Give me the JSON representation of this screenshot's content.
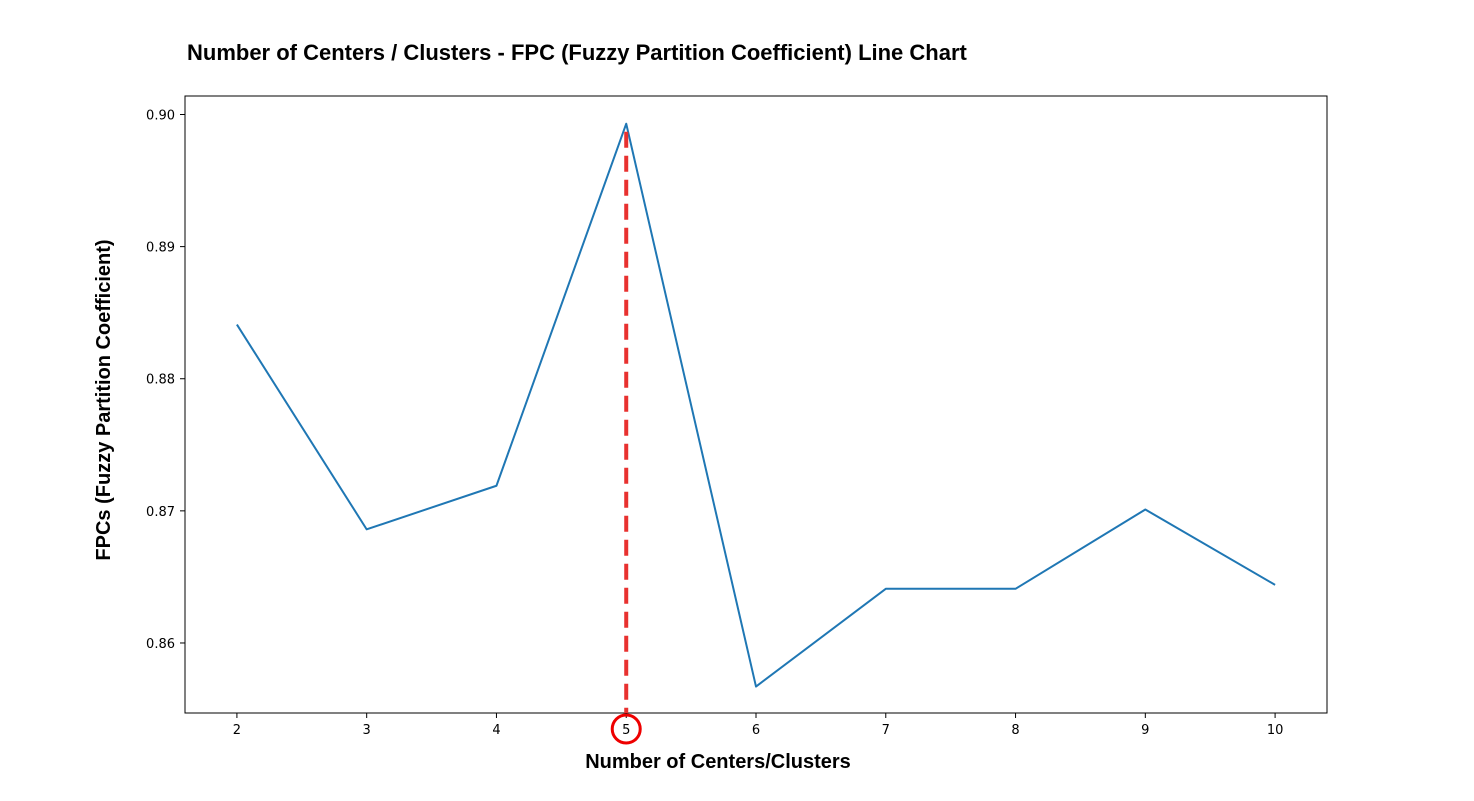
{
  "chart_data": {
    "type": "line",
    "title": "Number of Centers / Clusters - FPC (Fuzzy Partition Coefficient) Line Chart",
    "xlabel": "Number of Centers/Clusters",
    "ylabel": "FPCs (Fuzzy Partition Coefficient)",
    "x": [
      2,
      3,
      4,
      5,
      6,
      7,
      8,
      9,
      10
    ],
    "series": [
      {
        "values": [
          0.8841,
          0.8686,
          0.8719,
          0.8993,
          0.8567,
          0.8641,
          0.8641,
          0.8701,
          0.8644
        ],
        "color": "#1f77b4"
      }
    ],
    "xlim": [
      1.6,
      10.4
    ],
    "ylim": [
      0.8547,
      0.9014
    ],
    "xticks": [
      "2",
      "3",
      "4",
      "5",
      "6",
      "7",
      "8",
      "9",
      "10"
    ],
    "yticks": [
      "0.86",
      "0.87",
      "0.88",
      "0.89",
      "0.90"
    ],
    "ytick_values": [
      0.86,
      0.87,
      0.88,
      0.89,
      0.9
    ],
    "grid": false,
    "annotations": {
      "highlight_x": 5,
      "marker_line_color": "#e8312f",
      "marker_line_style": "dashed",
      "circled_tick": "5",
      "circle_color": "#ee0000"
    }
  }
}
